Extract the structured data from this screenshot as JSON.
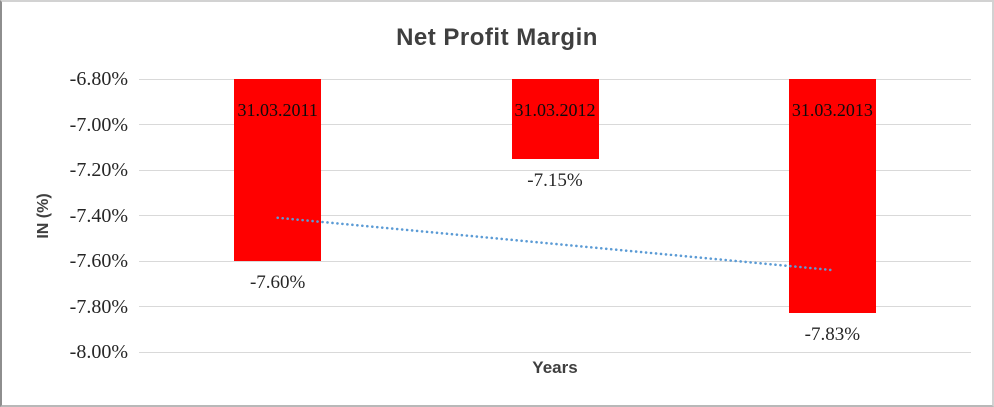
{
  "chart_data": {
    "type": "bar",
    "title": "Net Profit Margin",
    "xlabel": "Years",
    "ylabel": "IN (%)",
    "categories": [
      "31.03.2011",
      "31.03.2012",
      "31.03.2013"
    ],
    "values": [
      -7.6,
      -7.15,
      -7.83
    ],
    "data_labels": [
      "-7.60%",
      "-7.15%",
      "-7.83%"
    ],
    "ylim": [
      -8.0,
      -6.8
    ],
    "ytick_values": [
      -6.8,
      -7.0,
      -7.2,
      -7.4,
      -7.6,
      -7.8,
      -8.0
    ],
    "ytick_labels": [
      "-6.80%",
      "-7.00%",
      "-7.20%",
      "-7.40%",
      "-7.60%",
      "-7.80%",
      "-8.00%"
    ],
    "grid": true,
    "legend": "none",
    "bar_color": "#ff0000",
    "gridline_color": "#d9d9d9",
    "trendline": {
      "type": "linear",
      "style": "dotted",
      "color": "#5b9bd5",
      "start_value": -7.41,
      "end_value": -7.64
    }
  }
}
